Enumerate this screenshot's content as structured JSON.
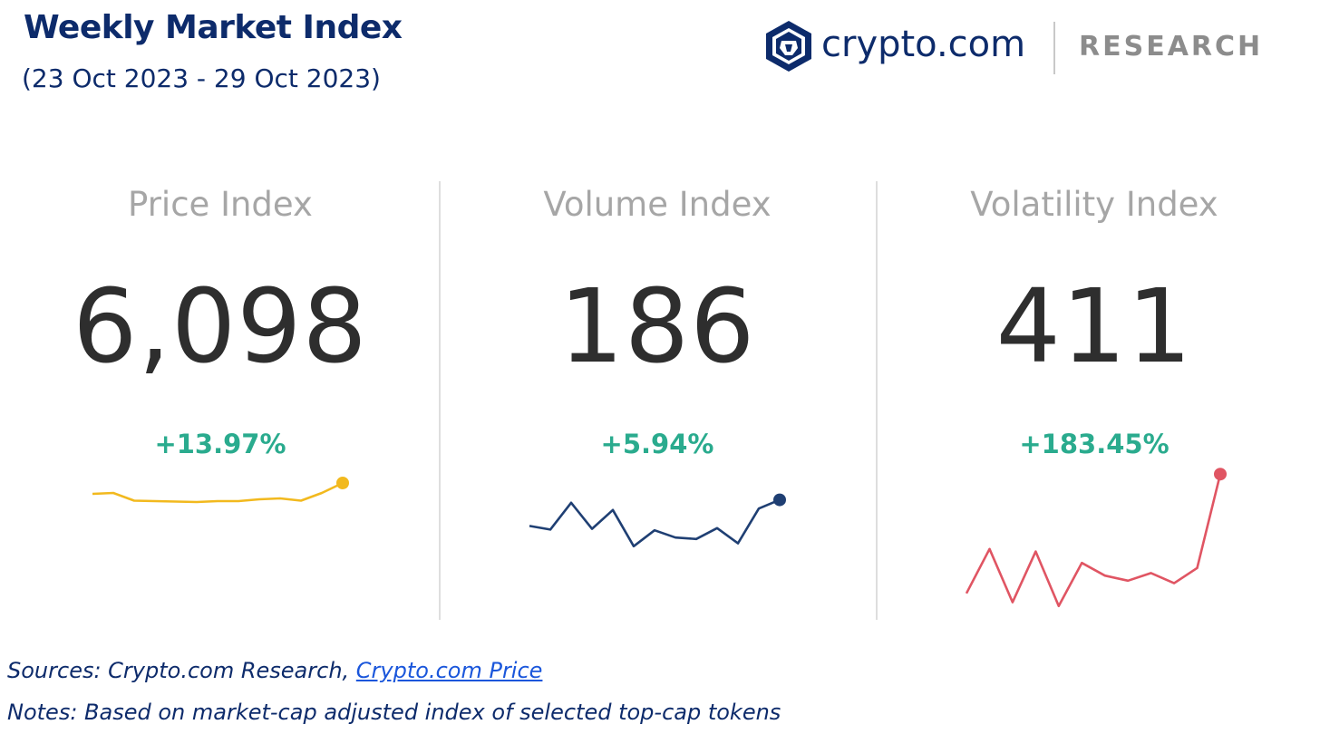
{
  "header": {
    "title": "Weekly Market Index",
    "subtitle": "(23 Oct 2023 - 29 Oct 2023)"
  },
  "brand": {
    "wordmark": "crypto.com",
    "tag": "RESEARCH",
    "icon": "crypto-com-lion-shield"
  },
  "chart_data": [
    {
      "type": "line",
      "title": "Price Index",
      "value": "6,098",
      "change": "+13.97%",
      "color": "#f2b91e",
      "change_color": "#2aab8e",
      "ylim": [
        0,
        10
      ],
      "values": [
        6.2,
        6.4,
        4.7,
        4.6,
        4.5,
        4.4,
        4.6,
        4.6,
        5.0,
        5.2,
        4.7,
        6.4,
        8.6
      ]
    },
    {
      "type": "line",
      "title": "Volume Index",
      "value": "186",
      "change": "+5.94%",
      "color": "#1f3f73",
      "change_color": "#2aab8e",
      "ylim": [
        0,
        10
      ],
      "values": [
        3.2,
        2.7,
        6.4,
        2.8,
        5.4,
        0.4,
        2.6,
        1.6,
        1.4,
        2.9,
        0.8,
        5.6,
        6.8
      ]
    },
    {
      "type": "line",
      "title": "Volatility Index",
      "value": "411",
      "change": "+183.45%",
      "color": "#e05563",
      "change_color": "#2aab8e",
      "ylim": [
        0,
        10
      ],
      "values": [
        0.8,
        4.3,
        0.1,
        4.1,
        -0.2,
        3.2,
        2.2,
        1.8,
        2.4,
        1.6,
        2.8,
        10.2
      ]
    }
  ],
  "footer": {
    "sources_prefix": "Sources: Crypto.com Research, ",
    "sources_link": "Crypto.com Price",
    "notes": "Notes: Based on market-cap adjusted index of selected top-cap tokens"
  }
}
